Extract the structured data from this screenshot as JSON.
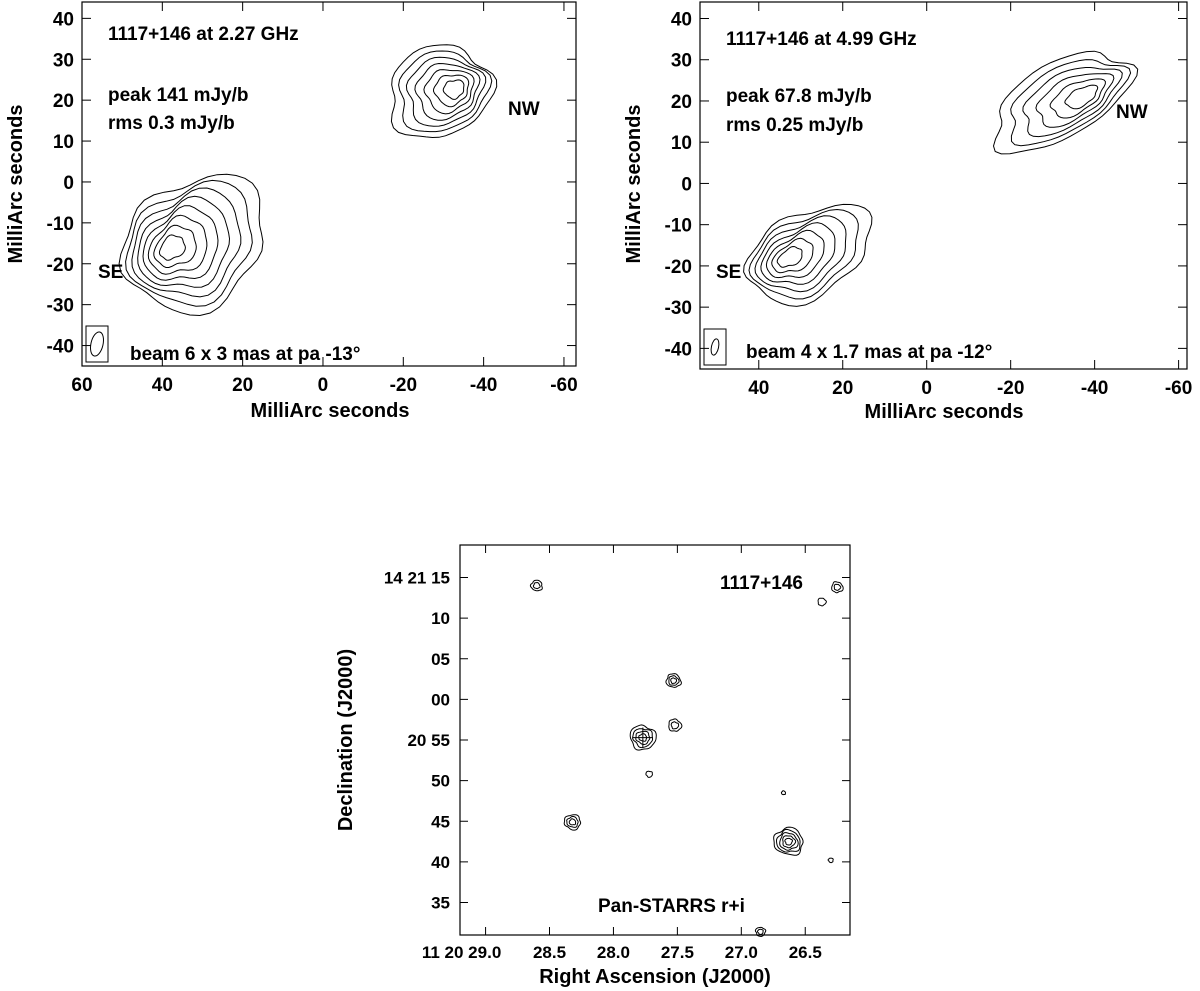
{
  "chart_data": [
    {
      "type": "contour",
      "annotations": [
        "1117+146 at 2.27 GHz",
        "peak 141 mJy/b",
        "rms 0.3 mJy/b",
        "beam 6 x 3 mas at pa -13°"
      ],
      "component_labels": [
        "NW",
        "SE"
      ],
      "xlabel": "MilliArc seconds",
      "ylabel": "MilliArc seconds",
      "xlim": [
        60,
        -63
      ],
      "ylim": [
        -45,
        44
      ],
      "xticks": [
        60,
        40,
        20,
        0,
        -20,
        -40,
        -60
      ],
      "yticks": [
        40,
        30,
        20,
        10,
        0,
        -10,
        -20,
        -30,
        -40
      ],
      "components": [
        {
          "label": "NW",
          "center": [
            -29,
            22
          ],
          "size": [
            26,
            22
          ],
          "pa": -25,
          "levels": 7
        },
        {
          "label": "SE",
          "center": [
            32,
            -15
          ],
          "size": [
            38,
            30
          ],
          "pa": -40,
          "levels": 8
        }
      ],
      "beam": {
        "major": 6,
        "minor": 3,
        "pa": -13
      }
    },
    {
      "type": "contour",
      "annotations": [
        "1117+146 at 4.99 GHz",
        "peak 67.8 mJy/b",
        "rms 0.25 mJy/b",
        "beam 4 x 1.7 mas at pa -12°"
      ],
      "component_labels": [
        "NW",
        "SE"
      ],
      "xlabel": "MilliArc seconds",
      "ylabel": "MilliArc seconds",
      "xlim": [
        54,
        -62
      ],
      "ylim": [
        -45,
        44
      ],
      "xticks": [
        40,
        20,
        0,
        -20,
        -40,
        -60
      ],
      "yticks": [
        40,
        30,
        20,
        10,
        0,
        -10,
        -20,
        -30,
        -40
      ],
      "components": [
        {
          "label": "NW",
          "center": [
            -32,
            20
          ],
          "size": [
            36,
            18
          ],
          "pa": -30,
          "levels": 6
        },
        {
          "label": "SE",
          "center": [
            28,
            -17
          ],
          "size": [
            32,
            20
          ],
          "pa": -30,
          "levels": 7
        }
      ],
      "beam": {
        "major": 4,
        "minor": 1.7,
        "pa": -12
      }
    },
    {
      "type": "contour",
      "annotations": [
        "1117+146",
        "Pan-STARRS r+i"
      ],
      "xlabel": "Right Ascension (J2000)",
      "ylabel": "Declination (J2000)",
      "xlim": [
        29.2,
        26.15
      ],
      "ylim": [
        31,
        19
      ],
      "yticks_values": [
        35,
        40,
        45,
        50,
        55,
        0,
        5,
        10,
        15
      ],
      "xticks_values": [
        29.0,
        28.5,
        28.0,
        27.5,
        27.0,
        26.5
      ],
      "xtick_labels": [
        "11 20 29.0",
        "28.5",
        "28.0",
        "27.5",
        "27.0",
        "26.5"
      ],
      "ytick_labels": [
        "35",
        "40",
        "45",
        "50",
        "20 55",
        "00",
        "05",
        "10",
        "14 21 15"
      ],
      "sources": [
        {
          "ra": 28.6,
          "dec": 14,
          "levels": 2,
          "r": 0.7
        },
        {
          "ra": 27.53,
          "dec": 2.3,
          "levels": 3,
          "r": 0.9
        },
        {
          "ra": 27.52,
          "dec": -3.2,
          "levels": 2,
          "r": 0.8
        },
        {
          "ra": 27.77,
          "dec": -4.7,
          "levels": 4,
          "r": 1.6
        },
        {
          "ra": 27.72,
          "dec": -9.2,
          "levels": 1,
          "r": 0.4
        },
        {
          "ra": 28.32,
          "dec": -15.1,
          "levels": 3,
          "r": 1.0
        },
        {
          "ra": 26.63,
          "dec": -17.5,
          "levels": 5,
          "r": 1.8
        },
        {
          "ra": 26.67,
          "dec": -11.5,
          "levels": 1,
          "r": 0.25
        },
        {
          "ra": 26.25,
          "dec": 13.8,
          "levels": 2,
          "r": 0.7
        },
        {
          "ra": 26.37,
          "dec": 12.0,
          "levels": 1,
          "r": 0.5
        },
        {
          "ra": 26.85,
          "dec": -28.6,
          "levels": 2,
          "r": 0.6
        },
        {
          "ra": 26.3,
          "dec": -19.8,
          "levels": 1,
          "r": 0.3
        }
      ]
    }
  ]
}
